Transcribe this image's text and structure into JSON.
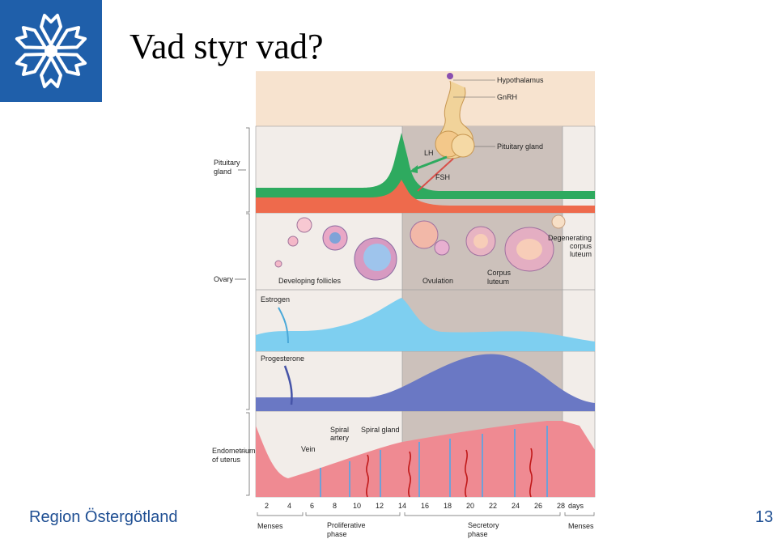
{
  "slide": {
    "title": "Vad styr vad?",
    "organization": "Region Östergötland",
    "page_number": "13"
  },
  "diagram": {
    "hypothalamus": "Hypothalamus",
    "gnrh": "GnRH",
    "pituitary_gland": "Pituitary gland",
    "lh": "LH",
    "fsh": "FSH",
    "pituitary_row_label": [
      "Pituitary",
      "gland"
    ],
    "ovary_row_label": "Ovary",
    "developing_follicles": "Developing follicles",
    "ovulation": "Ovulation",
    "corpus_luteum": [
      "Corpus",
      "luteum"
    ],
    "degenerating_corpus_luteum": [
      "Degenerating",
      "corpus",
      "luteum"
    ],
    "estrogen": "Estrogen",
    "progesterone": "Progesterone",
    "endometrium_label": [
      "Endometrium",
      "of uterus"
    ],
    "vein": "Vein",
    "spiral_artery": [
      "Spiral",
      "artery"
    ],
    "spiral_gland": "Spiral gland",
    "day_ticks": [
      "2",
      "4",
      "6",
      "8",
      "10",
      "12",
      "14",
      "16",
      "18",
      "20",
      "22",
      "24",
      "26",
      "28"
    ],
    "days_unit": "days",
    "phases": {
      "menses_start": "Menses",
      "proliferative": [
        "Proliferative",
        "phase"
      ],
      "secretory": [
        "Secretory",
        "phase"
      ],
      "menses_end": "Menses"
    }
  },
  "colors": {
    "logo_blue": "#1f5faa",
    "footer_text": "#1f4f93",
    "lh_green": "#2eaa5f",
    "fsh_red": "#ee6a4c",
    "estrogen_blue": "#7ecff0",
    "progesterone_blue": "#6a78c4",
    "luteal_shade": "#ccc1bb",
    "endometrium_pink": "#ef8a92",
    "header_peach": "#f7e3cf"
  }
}
